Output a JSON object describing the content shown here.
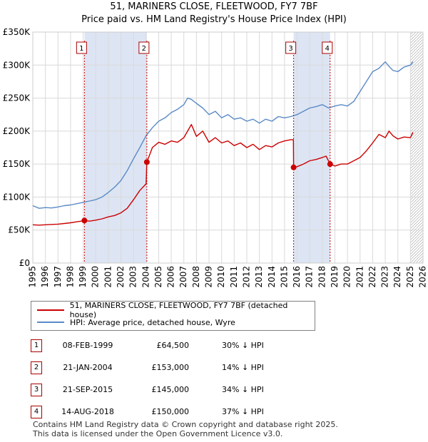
{
  "title": "51, MARINERS CLOSE, FLEETWOOD, FY7 7BF",
  "subtitle": "Price paid vs. HM Land Registry's House Price Index (HPI)",
  "colors": {
    "price_line": "#cc0000",
    "hpi_line": "#5a8ac6",
    "shade": "#dde5f4",
    "grid": "#d9d9d9",
    "badge_border": "#aa0000"
  },
  "chart_data": {
    "type": "line",
    "xlabel": "",
    "ylabel": "",
    "xlim": [
      1995.0,
      2026.0
    ],
    "ylim": [
      0,
      350000
    ],
    "y_ticks": [
      0,
      50000,
      100000,
      150000,
      200000,
      250000,
      300000,
      350000
    ],
    "y_tick_labels": [
      "£0",
      "£50K",
      "£100K",
      "£150K",
      "£200K",
      "£250K",
      "£300K",
      "£350K"
    ],
    "x_ticks": [
      1995,
      1996,
      1997,
      1998,
      1999,
      2000,
      2001,
      2002,
      2003,
      2004,
      2005,
      2006,
      2007,
      2008,
      2009,
      2010,
      2011,
      2012,
      2013,
      2014,
      2015,
      2016,
      2017,
      2018,
      2019,
      2020,
      2021,
      2022,
      2023,
      2024,
      2025,
      2026
    ],
    "x_tick_labels": [
      "1995",
      "1996",
      "1997",
      "1998",
      "1999",
      "2000",
      "2001",
      "2002",
      "2003",
      "2004",
      "2005",
      "2006",
      "2007",
      "2008",
      "2009",
      "2010",
      "2011",
      "2012",
      "2013",
      "2014",
      "2015",
      "2016",
      "2017",
      "2018",
      "2019",
      "2020",
      "2021",
      "2022",
      "2023",
      "2024",
      "2025",
      "2026"
    ],
    "grid": true,
    "shaded_periods": [
      [
        1999.1,
        2004.06
      ],
      [
        2015.72,
        2018.62
      ]
    ],
    "future_hatch_from": 2025.0,
    "series": [
      {
        "name": "51, MARINERS CLOSE, FLEETWOOD, FY7 7BF (detached house)",
        "x": [
          1995.0,
          1995.5,
          1996.0,
          1996.5,
          1997.0,
          1997.5,
          1998.0,
          1998.5,
          1999.0,
          1999.1,
          1999.5,
          2000.0,
          2000.5,
          2001.0,
          2001.5,
          2002.0,
          2002.5,
          2003.0,
          2003.5,
          2004.0,
          2004.06,
          2004.5,
          2005.0,
          2005.5,
          2006.0,
          2006.5,
          2007.0,
          2007.3,
          2007.6,
          2008.0,
          2008.5,
          2009.0,
          2009.5,
          2010.0,
          2010.5,
          2011.0,
          2011.5,
          2012.0,
          2012.5,
          2013.0,
          2013.5,
          2014.0,
          2014.5,
          2015.0,
          2015.5,
          2015.7,
          2015.72,
          2016.0,
          2016.5,
          2017.0,
          2017.5,
          2018.0,
          2018.3,
          2018.62,
          2019.0,
          2019.5,
          2020.0,
          2020.5,
          2021.0,
          2021.5,
          2022.0,
          2022.5,
          2023.0,
          2023.3,
          2023.6,
          2024.0,
          2024.5,
          2025.0,
          2025.2
        ],
        "values": [
          58000,
          57500,
          58000,
          58500,
          59000,
          60000,
          61000,
          62500,
          64000,
          64500,
          63500,
          65000,
          67000,
          70000,
          72000,
          76000,
          83000,
          96000,
          110000,
          120000,
          153000,
          175000,
          183000,
          180000,
          185000,
          183000,
          190000,
          200000,
          210000,
          192000,
          200000,
          183000,
          190000,
          182000,
          185000,
          178000,
          182000,
          175000,
          180000,
          172000,
          178000,
          176000,
          182000,
          185000,
          187000,
          187000,
          145000,
          146000,
          150000,
          155000,
          157000,
          160000,
          162000,
          150000,
          147000,
          150000,
          150000,
          155000,
          160000,
          170000,
          182000,
          195000,
          190000,
          200000,
          193000,
          188000,
          191000,
          190000,
          198000
        ]
      },
      {
        "name": "HPI: Average price, detached house, Wyre",
        "x": [
          1995.0,
          1995.5,
          1996.0,
          1996.5,
          1997.0,
          1997.5,
          1998.0,
          1998.5,
          1999.0,
          1999.5,
          2000.0,
          2000.5,
          2001.0,
          2001.5,
          2002.0,
          2002.5,
          2003.0,
          2003.5,
          2004.0,
          2004.5,
          2005.0,
          2005.5,
          2006.0,
          2006.5,
          2007.0,
          2007.3,
          2007.6,
          2008.0,
          2008.5,
          2009.0,
          2009.5,
          2010.0,
          2010.5,
          2011.0,
          2011.5,
          2012.0,
          2012.5,
          2013.0,
          2013.5,
          2014.0,
          2014.5,
          2015.0,
          2015.5,
          2016.0,
          2016.5,
          2017.0,
          2017.5,
          2018.0,
          2018.5,
          2019.0,
          2019.5,
          2020.0,
          2020.5,
          2021.0,
          2021.5,
          2022.0,
          2022.5,
          2023.0,
          2023.3,
          2023.6,
          2024.0,
          2024.5,
          2025.0,
          2025.2
        ],
        "values": [
          87000,
          83000,
          84000,
          83500,
          85000,
          87000,
          88000,
          90000,
          92000,
          94000,
          96000,
          100000,
          107000,
          115000,
          125000,
          140000,
          158000,
          175000,
          193000,
          205000,
          215000,
          220000,
          228000,
          233000,
          240000,
          250000,
          248000,
          242000,
          235000,
          225000,
          230000,
          220000,
          225000,
          218000,
          220000,
          215000,
          218000,
          212000,
          218000,
          215000,
          222000,
          220000,
          222000,
          225000,
          230000,
          235000,
          237000,
          240000,
          235000,
          238000,
          240000,
          238000,
          245000,
          260000,
          275000,
          290000,
          295000,
          305000,
          298000,
          292000,
          290000,
          297000,
          300000,
          305000
        ]
      }
    ],
    "sale_markers": [
      {
        "label": "1",
        "x": 1999.1,
        "value": 64500
      },
      {
        "label": "2",
        "x": 2004.06,
        "value": 153000
      },
      {
        "label": "3",
        "x": 2015.72,
        "value": 145000
      },
      {
        "label": "4",
        "x": 2018.62,
        "value": 150000
      }
    ]
  },
  "legend": {
    "price_label": "51, MARINERS CLOSE, FLEETWOOD, FY7 7BF (detached house)",
    "hpi_label": "HPI: Average price, detached house, Wyre"
  },
  "sales": [
    {
      "num": "1",
      "date": "08-FEB-1999",
      "price": "£64,500",
      "hpi": "30% ↓ HPI"
    },
    {
      "num": "2",
      "date": "21-JAN-2004",
      "price": "£153,000",
      "hpi": "14% ↓ HPI"
    },
    {
      "num": "3",
      "date": "21-SEP-2015",
      "price": "£145,000",
      "hpi": "34% ↓ HPI"
    },
    {
      "num": "4",
      "date": "14-AUG-2018",
      "price": "£150,000",
      "hpi": "37% ↓ HPI"
    }
  ],
  "footer": {
    "line1": "Contains HM Land Registry data © Crown copyright and database right 2025.",
    "line2": "This data is licensed under the Open Government Licence v3.0."
  }
}
